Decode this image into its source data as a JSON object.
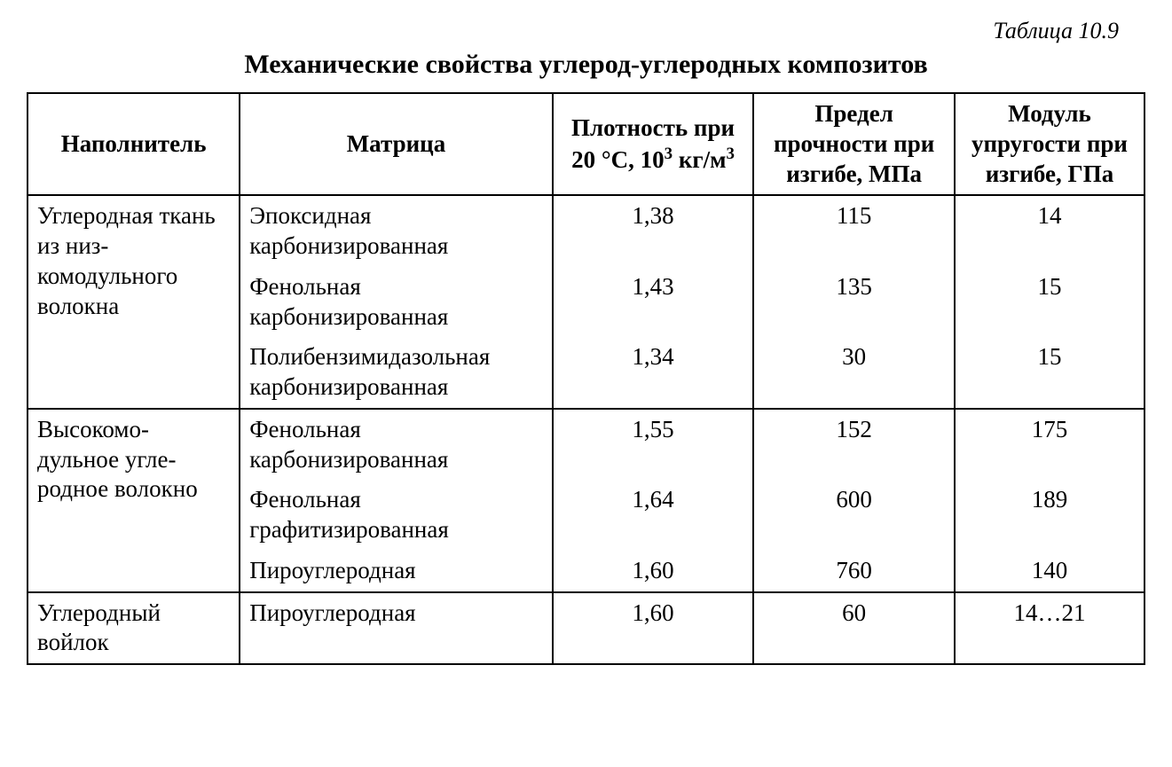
{
  "tableLabel": "Таблица 10.9",
  "title": "Механические свойства углерод-углеродных композитов",
  "columns": {
    "c1": "Наполнитель",
    "c2": "Матрица",
    "c3_html": "Плотность при 20 °С, 10<sup>3</sup> кг/м<sup>3</sup>",
    "c4": "Предел прочности при изгибе, МПа",
    "c5": "Модуль упругости при изгибе, ГПа"
  },
  "colWidths": [
    "19%",
    "28%",
    "18%",
    "18%",
    "17%"
  ],
  "groups": [
    {
      "filler": "Углеродная ткань из низ-комодульного волокна",
      "rows": [
        {
          "matrix": "Эпоксидная карбонизированная",
          "density": "1,38",
          "strength": "115",
          "modulus": "14"
        },
        {
          "matrix": "Фенольная карбонизированная",
          "density": "1,43",
          "strength": "135",
          "modulus": "15"
        },
        {
          "matrix": "Полибензимидазольная карбонизированная",
          "density": "1,34",
          "strength": "30",
          "modulus": "15"
        }
      ]
    },
    {
      "filler": "Высокомо-дульное угле-родное волокно",
      "rows": [
        {
          "matrix": "Фенольная карбонизированная",
          "density": "1,55",
          "strength": "152",
          "modulus": "175"
        },
        {
          "matrix": "Фенольная графитизированная",
          "density": "1,64",
          "strength": "600",
          "modulus": "189"
        },
        {
          "matrix": "Пироуглеродная",
          "density": "1,60",
          "strength": "760",
          "modulus": "140"
        }
      ]
    },
    {
      "filler": "Углеродный войлок",
      "rows": [
        {
          "matrix": "Пироуглеродная",
          "density": "1,60",
          "strength": "60",
          "modulus": "14…21"
        }
      ]
    }
  ]
}
